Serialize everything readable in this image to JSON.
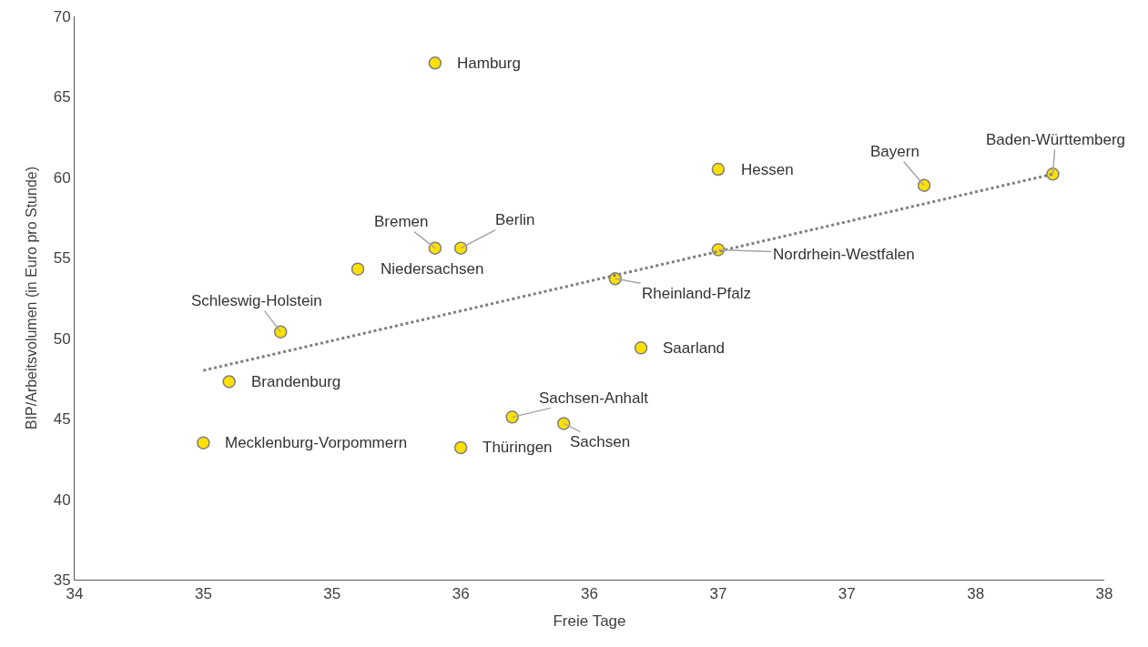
{
  "chart_data": {
    "type": "scatter",
    "xlabel": "Freie Tage",
    "ylabel": "BIP/Arbeitsvolumen (in Euro pro Stunde)",
    "xlim": [
      34,
      38
    ],
    "xticks": [
      34,
      {
        "value": 34.5,
        "label": "35"
      },
      35,
      {
        "value": 35.5,
        "label": "36"
      },
      36,
      {
        "value": 36.5,
        "label": "37"
      },
      37,
      {
        "value": 37.5,
        "label": "38"
      },
      38
    ],
    "ylim": [
      35,
      70
    ],
    "yticks": [
      35,
      40,
      45,
      50,
      55,
      60,
      65,
      70
    ],
    "grid": false,
    "legend": false,
    "series": [
      {
        "color": "#ffe000",
        "marker": "circle",
        "x": [
          35.4,
          36.5,
          37.3,
          37.8,
          35.4,
          35.5,
          35.1,
          36.5,
          36.1,
          34.8,
          36.2,
          34.6,
          35.7,
          35.9,
          34.5,
          35.5
        ],
        "values": [
          67.1,
          60.5,
          59.5,
          60.2,
          55.6,
          55.6,
          54.3,
          55.5,
          53.7,
          50.4,
          49.4,
          47.3,
          45.1,
          44.7,
          43.5,
          43.2
        ]
      },
      {
        "type": "line",
        "color": "#7f7f7f",
        "line_style": "dotted",
        "marker": "none",
        "x": [
          34.5,
          37.8
        ],
        "values": [
          48.0,
          60.2
        ]
      }
    ],
    "annotations": [
      {
        "text": "Hamburg",
        "x": 35.4,
        "y": 67.1
      },
      {
        "text": "Hessen",
        "x": 36.5,
        "y": 60.5
      },
      {
        "text": "Bayern",
        "x": 37.3,
        "y": 59.5
      },
      {
        "text": "Baden-Württemberg",
        "x": 37.8,
        "y": 60.2
      },
      {
        "text": "Bremen",
        "x": 35.4,
        "y": 55.6
      },
      {
        "text": "Berlin",
        "x": 35.5,
        "y": 55.6
      },
      {
        "text": "Niedersachsen",
        "x": 35.1,
        "y": 54.3
      },
      {
        "text": "Nordrhein-Westfalen",
        "x": 36.5,
        "y": 55.5
      },
      {
        "text": "Rheinland-Pfalz",
        "x": 36.1,
        "y": 53.7
      },
      {
        "text": "Schleswig-Holstein",
        "x": 34.8,
        "y": 50.4
      },
      {
        "text": "Saarland",
        "x": 36.2,
        "y": 49.4
      },
      {
        "text": "Brandenburg",
        "x": 34.6,
        "y": 47.3
      },
      {
        "text": "Sachsen-Anhalt",
        "x": 35.7,
        "y": 45.1
      },
      {
        "text": "Sachsen",
        "x": 35.9,
        "y": 44.7
      },
      {
        "text": "Mecklenburg-Vorpommern",
        "x": 34.5,
        "y": 43.5
      },
      {
        "text": "Thüringen",
        "x": 35.5,
        "y": 43.2
      }
    ]
  }
}
